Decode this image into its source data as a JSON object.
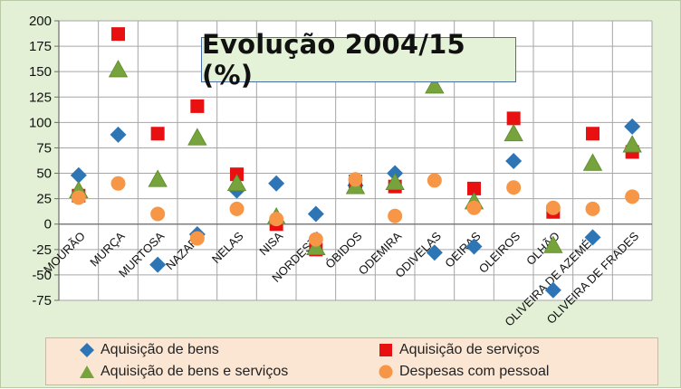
{
  "chart_data": {
    "type": "scatter",
    "title": "Evolução 2004/15 (%)",
    "xlabel": "",
    "ylabel": "",
    "ylim": [
      -75,
      200
    ],
    "yticks": [
      200,
      175,
      150,
      125,
      100,
      75,
      50,
      25,
      0,
      -25,
      -50,
      -75
    ],
    "grid": true,
    "legend_position": "bottom",
    "categories": [
      "MOURÃO",
      "MURÇA",
      "MURTOSA",
      "NAZARÉ",
      "NELAS",
      "NISA",
      "NORDESTE",
      "ÓBIDOS",
      "ODEMIRA",
      "ODIVELAS",
      "OEIRAS",
      "OLEIROS",
      "OLHÃO",
      "OLIVEIRA DE AZEMÉIS",
      "OLIVEIRA DE FRADES"
    ],
    "series": [
      {
        "name": "Aquisição de bens",
        "marker": "diamond",
        "color": "#2e75b6",
        "values": [
          48,
          88,
          -40,
          -10,
          33,
          40,
          10,
          38,
          50,
          -28,
          -22,
          62,
          -65,
          -13,
          96
        ]
      },
      {
        "name": "Aquisição de serviços",
        "marker": "square",
        "color": "#e81010",
        "values": [
          28,
          187,
          89,
          116,
          49,
          0,
          -25,
          42,
          37,
          null,
          35,
          104,
          12,
          89,
          71
        ]
      },
      {
        "name": "Aquisição de bens e serviços",
        "marker": "triangle",
        "color": "#77a33c",
        "values": [
          33,
          152,
          44,
          85,
          40,
          7,
          -23,
          37,
          41,
          136,
          22,
          89,
          -21,
          60,
          78
        ]
      },
      {
        "name": "Despesas com pessoal",
        "marker": "circle",
        "color": "#f79646",
        "values": [
          26,
          40,
          10,
          -14,
          15,
          5,
          -15,
          44,
          8,
          43,
          16,
          36,
          16,
          15,
          27
        ]
      }
    ]
  }
}
